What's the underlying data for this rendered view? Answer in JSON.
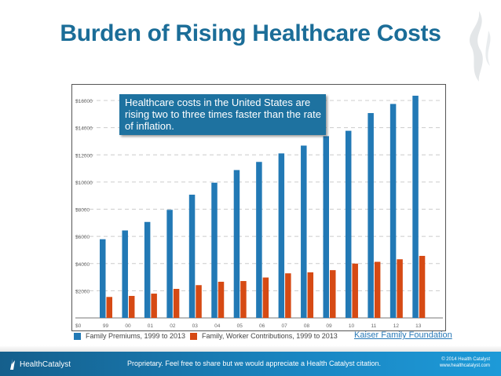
{
  "title": "Burden of Rising Healthcare Costs",
  "callout": "Healthcare costs in the United States are rising two to three times faster than the rate of inflation.",
  "source_link": "Kaiser Family Foundation",
  "footer": {
    "logo_text": "HealthCatalyst",
    "notice": "Proprietary. Feel free to share but we would appreciate a Health Catalyst citation.",
    "copyright": "© 2014 Health Catalyst",
    "website": "www.healthcatalyst.com"
  },
  "chart_data": {
    "type": "bar",
    "categories": [
      "99",
      "00",
      "01",
      "02",
      "03",
      "04",
      "05",
      "06",
      "07",
      "08",
      "09",
      "10",
      "11",
      "12",
      "13"
    ],
    "y_ticks": [
      "$0",
      "$2000",
      "$4000",
      "$6000",
      "$8000",
      "$10000",
      "$12000",
      "$14000",
      "$16000"
    ],
    "ylim": [
      0,
      16500
    ],
    "grid": true,
    "legend_position": "bottom",
    "series": [
      {
        "name": "Family Premiums, 1999 to 2013",
        "color": "#2279b5",
        "values": [
          5791,
          6438,
          7061,
          7954,
          9068,
          9950,
          10880,
          11480,
          12106,
          12680,
          13375,
          13770,
          15073,
          15745,
          16351
        ]
      },
      {
        "name": "Family, Worker Contributions, 1999 to 2013",
        "color": "#d64a14",
        "values": [
          1543,
          1619,
          1787,
          2137,
          2412,
          2661,
          2713,
          2973,
          3281,
          3354,
          3515,
          3997,
          4129,
          4316,
          4565
        ]
      }
    ]
  },
  "colors": {
    "title": "#1b6d98",
    "callout_bg": "#1e72a0",
    "footer": "#1a86c2"
  }
}
